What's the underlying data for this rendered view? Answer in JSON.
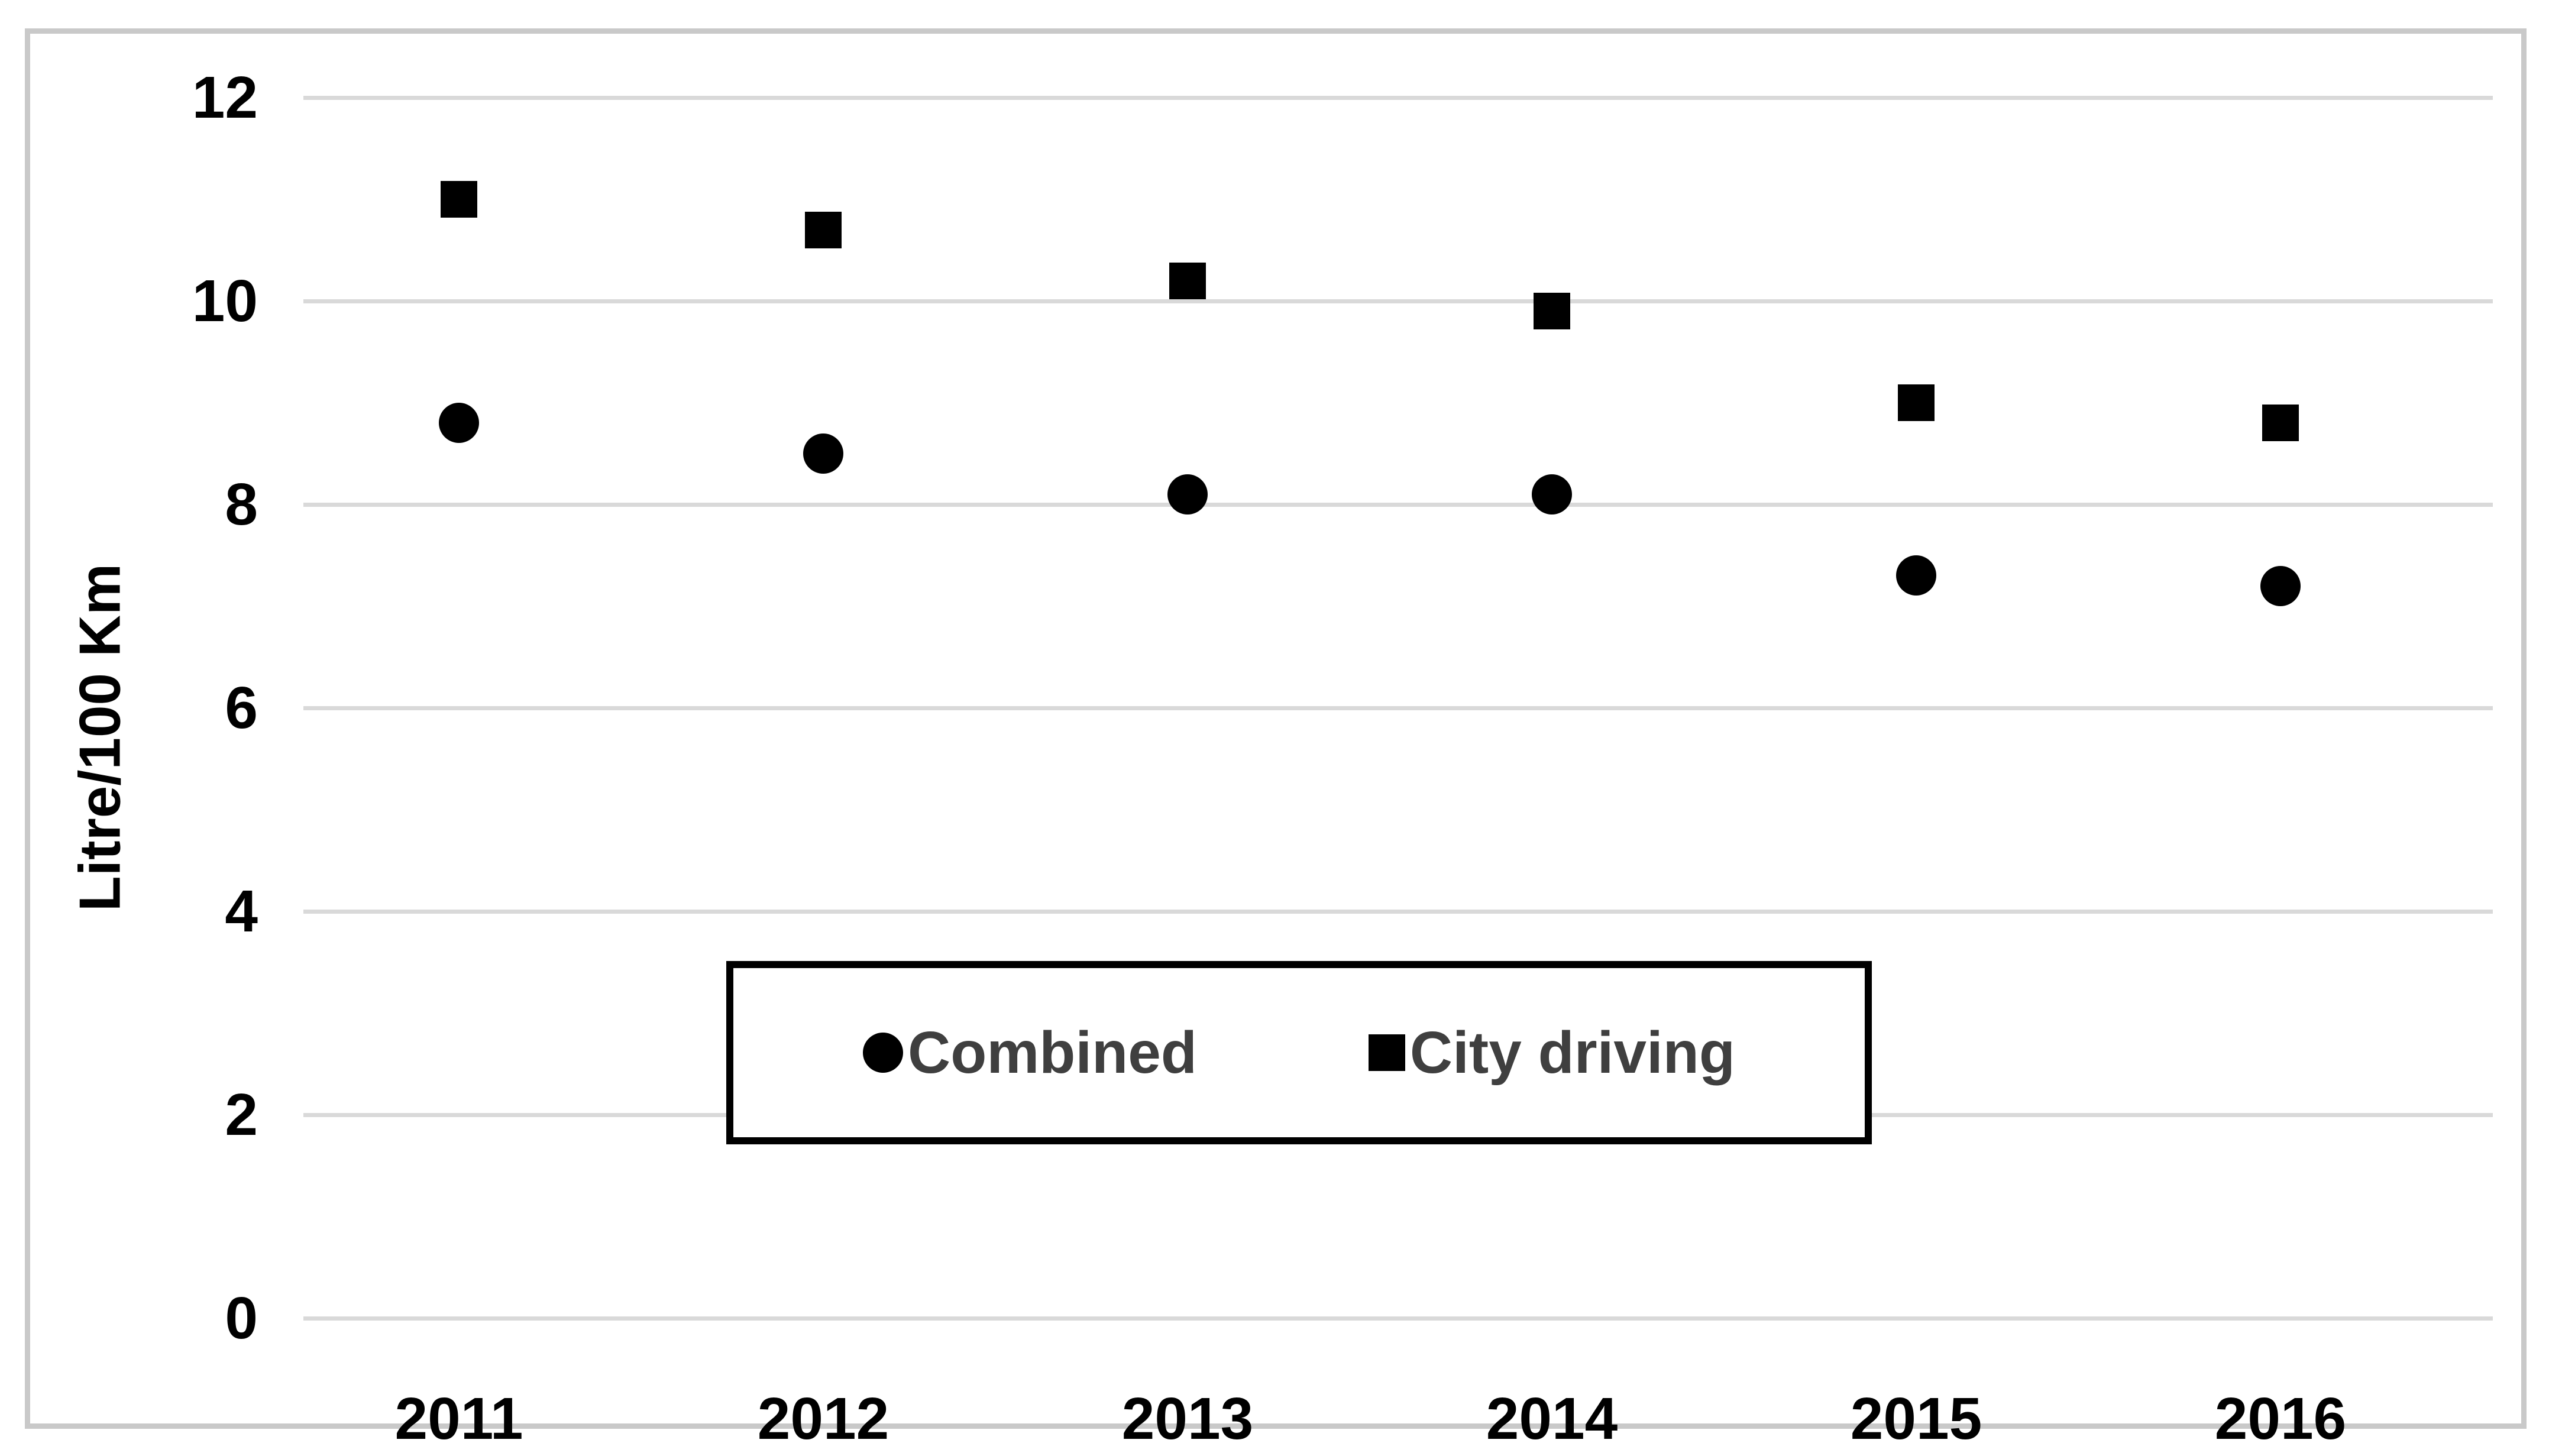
{
  "colors": {
    "background": "#ffffff",
    "frame_border": "#c9c9c9",
    "grid": "#d9d9d9",
    "marker": "#000000",
    "axis_text": "#000000",
    "legend_border": "#000000",
    "legend_text": "#3f3f3f"
  },
  "legend": {
    "items": [
      {
        "label": "Combined",
        "marker": "circle"
      },
      {
        "label": "City driving",
        "marker": "square"
      }
    ]
  },
  "chart_data": {
    "type": "scatter",
    "x": [
      2011,
      2012,
      2013,
      2014,
      2015,
      2016
    ],
    "series": [
      {
        "name": "Combined",
        "marker": "circle",
        "values": [
          8.8,
          8.5,
          8.1,
          8.1,
          7.3,
          7.2
        ]
      },
      {
        "name": "City driving",
        "marker": "square",
        "values": [
          11.0,
          10.7,
          10.2,
          9.9,
          9.0,
          8.8
        ]
      }
    ],
    "ylabel": "Litre/100 Km",
    "ylim": [
      0,
      12
    ],
    "yticks": [
      0,
      2,
      4,
      6,
      8,
      10,
      12
    ],
    "grid": true,
    "legend_position": "inside-bottom-center"
  }
}
